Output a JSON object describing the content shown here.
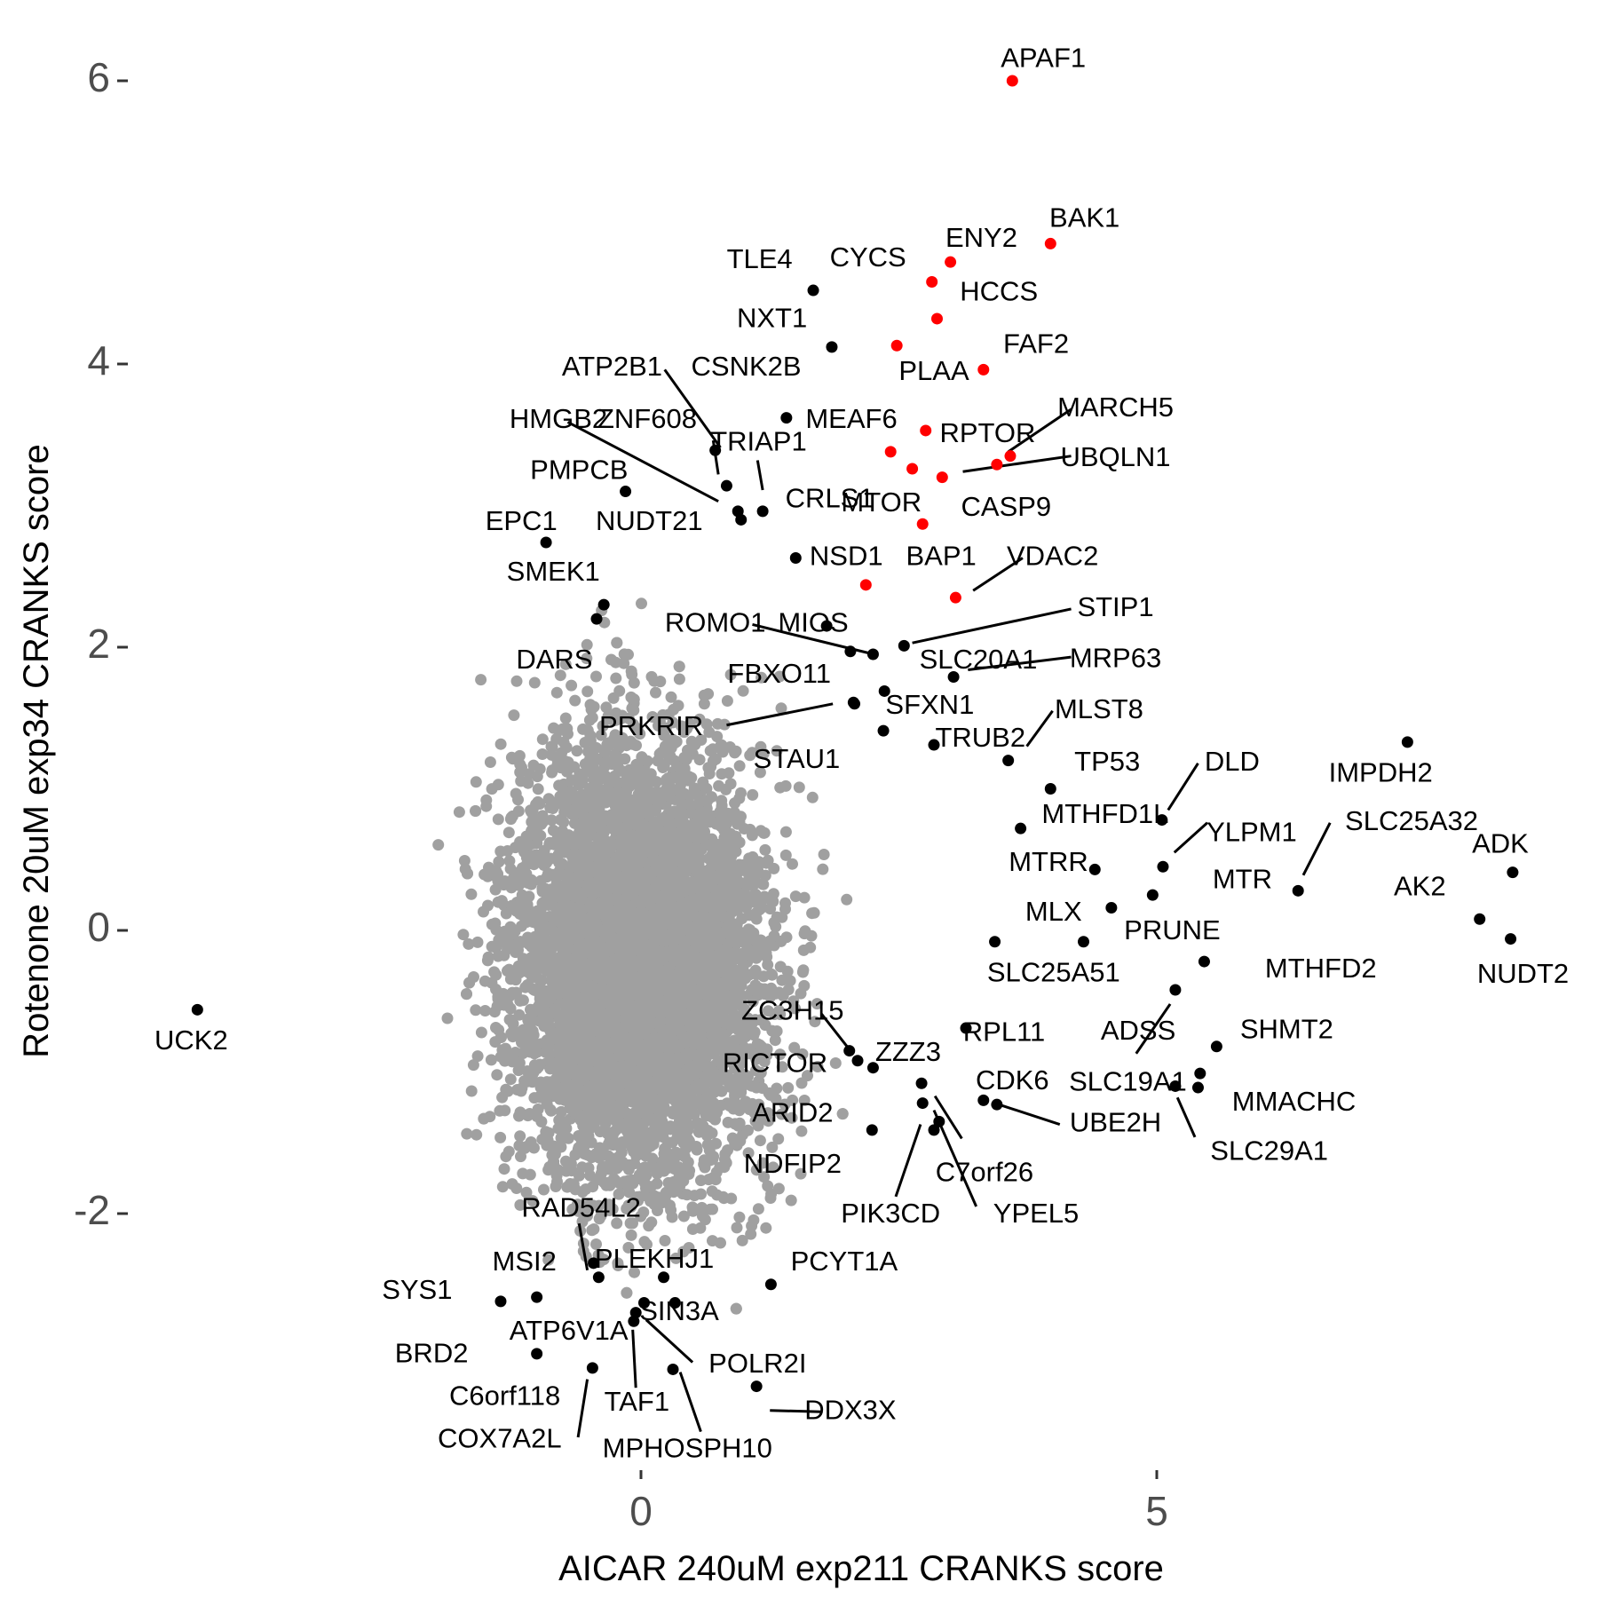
{
  "chart_data": {
    "type": "scatter",
    "title": "",
    "xlabel": "AICAR 240uM exp211 CRANKS score",
    "ylabel": "Rotenone 20uM exp34 CRANKS score",
    "xlim": [
      -4.4,
      9.2
    ],
    "ylim": [
      -3.7,
      6.3
    ],
    "x_ticks": [
      0,
      5
    ],
    "y_ticks": [
      -2,
      0,
      2,
      4,
      6
    ],
    "grid": false,
    "colors": {
      "background_points": "#a0a0a0",
      "hit": "#000000",
      "highlight": "#ff0000",
      "tick_label": "#4d4d4d"
    },
    "background_cloud": {
      "description_color": "#a0a0a0",
      "center": [
        0.0,
        -0.2
      ],
      "approx_count": 6000
    },
    "points": [
      {
        "label": "APAF1",
        "x": 3.6,
        "y": 6.0,
        "color": "red",
        "lx": 3.9,
        "ly": 6.15
      },
      {
        "label": "BAK1",
        "x": 3.97,
        "y": 4.85,
        "color": "red",
        "lx": 4.3,
        "ly": 5.02
      },
      {
        "label": "ENY2",
        "x": 3.0,
        "y": 4.72,
        "color": "red",
        "lx": 3.3,
        "ly": 4.88
      },
      {
        "label": "CYCS",
        "x": 2.82,
        "y": 4.58,
        "color": "red",
        "lx": 2.2,
        "ly": 4.74
      },
      {
        "label": "HCCS",
        "x": 2.87,
        "y": 4.32,
        "color": "red",
        "lx": 3.47,
        "ly": 4.5
      },
      {
        "label": "TLE4",
        "x": 1.67,
        "y": 4.52,
        "color": "black",
        "lx": 1.15,
        "ly": 4.73
      },
      {
        "label": "NXT1",
        "x": 1.85,
        "y": 4.12,
        "color": "black",
        "lx": 1.27,
        "ly": 4.31
      },
      {
        "label": "PLAA",
        "x": 2.48,
        "y": 4.13,
        "color": "red",
        "lx": 2.84,
        "ly": 3.94
      },
      {
        "label": "FAF2",
        "x": 3.32,
        "y": 3.96,
        "color": "red",
        "lx": 3.83,
        "ly": 4.13
      },
      {
        "label": "CSNK2B",
        "x": 1.41,
        "y": 3.62,
        "color": "black",
        "lx": 1.02,
        "ly": 3.97
      },
      {
        "label": "MEAF6",
        "x": 2.76,
        "y": 3.53,
        "color": "red",
        "lx": 2.04,
        "ly": 3.6
      },
      {
        "label": "RPTOR",
        "x": 3.45,
        "y": 3.29,
        "color": "red",
        "lx": 3.36,
        "ly": 3.5
      },
      {
        "label": "MARCH5",
        "x": 3.58,
        "y": 3.35,
        "color": "red",
        "lx": 4.6,
        "ly": 3.68
      },
      {
        "label": "UBQLN1",
        "x": 2.92,
        "y": 3.2,
        "color": "red",
        "lx": 4.6,
        "ly": 3.33
      },
      {
        "label": "TRIAP1",
        "x": 2.42,
        "y": 3.38,
        "color": "red",
        "lx": 1.14,
        "ly": 3.44
      },
      {
        "label": "CASP9",
        "x": 2.63,
        "y": 3.26,
        "color": "red",
        "lx": 3.54,
        "ly": 2.98
      },
      {
        "label": "MTOR",
        "x": 2.73,
        "y": 2.87,
        "color": "red",
        "lx": 2.33,
        "ly": 3.01
      },
      {
        "label": "CRLS1",
        "x": 1.18,
        "y": 2.96,
        "color": "black",
        "lx": 1.83,
        "ly": 3.04
      },
      {
        "label": "ZNF608",
        "x": 0.72,
        "y": 3.39,
        "color": "black",
        "lx": 0.06,
        "ly": 3.6
      },
      {
        "label": "ATP2B1",
        "x": 0.83,
        "y": 3.14,
        "color": "black",
        "lx": -0.28,
        "ly": 3.97
      },
      {
        "label": "HMGB2",
        "x": 0.94,
        "y": 2.96,
        "color": "black",
        "lx": -0.8,
        "ly": 3.6
      },
      {
        "label": "PMPCB",
        "x": -0.15,
        "y": 3.1,
        "color": "black",
        "lx": -0.6,
        "ly": 3.24
      },
      {
        "label": "EPC1",
        "x": -0.92,
        "y": 2.74,
        "color": "black",
        "lx": -1.16,
        "ly": 2.88
      },
      {
        "label": "NUDT21",
        "x": 0.97,
        "y": 2.9,
        "color": "black",
        "lx": 0.08,
        "ly": 2.88
      },
      {
        "label": "NSD1",
        "x": 1.5,
        "y": 2.63,
        "color": "black",
        "lx": 1.99,
        "ly": 2.63
      },
      {
        "label": "SMEK1",
        "x": -0.36,
        "y": 2.3,
        "color": "black",
        "lx": -0.85,
        "ly": 2.52
      },
      {
        "label": "BAP1",
        "x": 2.18,
        "y": 2.44,
        "color": "red",
        "lx": 2.91,
        "ly": 2.63
      },
      {
        "label": "VDAC2",
        "x": 3.05,
        "y": 2.35,
        "color": "red",
        "lx": 3.99,
        "ly": 2.63
      },
      {
        "label": "STIP1",
        "x": 2.55,
        "y": 2.01,
        "color": "black",
        "lx": 4.6,
        "ly": 2.27
      },
      {
        "label": "MIOS",
        "x": 1.8,
        "y": 2.15,
        "color": "black",
        "lx": 1.67,
        "ly": 2.16
      },
      {
        "label": "ROMO1",
        "x": 2.03,
        "y": 1.97,
        "color": "black",
        "lx": 0.72,
        "ly": 2.16
      },
      {
        "label": "DARS",
        "x": -0.43,
        "y": 2.2,
        "color": "black",
        "lx": -0.84,
        "ly": 1.9
      },
      {
        "label": "SLC20A1",
        "x": 2.25,
        "y": 1.95,
        "color": "black",
        "lx": 3.27,
        "ly": 1.9
      },
      {
        "label": "MRP63",
        "x": 3.03,
        "y": 1.79,
        "color": "black",
        "lx": 4.6,
        "ly": 1.91
      },
      {
        "label": "FBXO11",
        "x": 2.36,
        "y": 1.69,
        "color": "black",
        "lx": 1.34,
        "ly": 1.8
      },
      {
        "label": "SFXN1",
        "x": 2.06,
        "y": 1.61,
        "color": "black",
        "lx": 2.8,
        "ly": 1.58
      },
      {
        "label": "PRKRIR",
        "x": 2.07,
        "y": 1.6,
        "color": "black",
        "lx": 0.1,
        "ly": 1.43
      },
      {
        "label": "MLST8",
        "x": 3.56,
        "y": 1.2,
        "color": "black",
        "lx": 4.44,
        "ly": 1.55
      },
      {
        "label": "TRUB2",
        "x": 2.84,
        "y": 1.31,
        "color": "black",
        "lx": 3.29,
        "ly": 1.35
      },
      {
        "label": "STAU1",
        "x": 2.35,
        "y": 1.41,
        "color": "black",
        "lx": 1.51,
        "ly": 1.2
      },
      {
        "label": "TP53",
        "x": 3.97,
        "y": 1.0,
        "color": "black",
        "lx": 4.52,
        "ly": 1.18
      },
      {
        "label": "DLD",
        "x": 5.05,
        "y": 0.78,
        "color": "black",
        "lx": 5.73,
        "ly": 1.18
      },
      {
        "label": "IMPDH2",
        "x": 7.43,
        "y": 1.33,
        "color": "black",
        "lx": 7.17,
        "ly": 1.1
      },
      {
        "label": "MTHFD1L",
        "x": 3.68,
        "y": 0.72,
        "color": "black",
        "lx": 4.5,
        "ly": 0.81
      },
      {
        "label": "YLPM1",
        "x": 5.06,
        "y": 0.45,
        "color": "black",
        "lx": 5.92,
        "ly": 0.68
      },
      {
        "label": "SLC25A32",
        "x": 6.37,
        "y": 0.28,
        "color": "black",
        "lx": 7.47,
        "ly": 0.76
      },
      {
        "label": "ADK",
        "x": 8.45,
        "y": 0.41,
        "color": "black",
        "lx": 8.33,
        "ly": 0.6
      },
      {
        "label": "MTRR",
        "x": 4.4,
        "y": 0.43,
        "color": "black",
        "lx": 3.95,
        "ly": 0.47
      },
      {
        "label": "MTR",
        "x": 4.96,
        "y": 0.25,
        "color": "black",
        "lx": 5.83,
        "ly": 0.35
      },
      {
        "label": "AK2",
        "x": 8.13,
        "y": 0.08,
        "color": "black",
        "lx": 7.55,
        "ly": 0.3
      },
      {
        "label": "MLX",
        "x": 4.56,
        "y": 0.16,
        "color": "black",
        "lx": 4.0,
        "ly": 0.12
      },
      {
        "label": "PRUNE",
        "x": 4.29,
        "y": -0.08,
        "color": "black",
        "lx": 5.15,
        "ly": -0.01
      },
      {
        "label": "NUDT2",
        "x": 8.43,
        "y": -0.06,
        "color": "black",
        "lx": 8.55,
        "ly": -0.32
      },
      {
        "label": "MTHFD2",
        "x": 5.46,
        "y": -0.22,
        "color": "black",
        "lx": 6.59,
        "ly": -0.28
      },
      {
        "label": "SLC25A51",
        "x": 3.43,
        "y": -0.08,
        "color": "black",
        "lx": 4.0,
        "ly": -0.31
      },
      {
        "label": "ZC3H15",
        "x": 2.02,
        "y": -0.85,
        "color": "black",
        "lx": 1.47,
        "ly": -0.58
      },
      {
        "label": "ADSS",
        "x": 5.18,
        "y": -0.42,
        "color": "black",
        "lx": 4.82,
        "ly": -0.72
      },
      {
        "label": "SHMT2",
        "x": 5.58,
        "y": -0.82,
        "color": "black",
        "lx": 6.26,
        "ly": -0.71
      },
      {
        "label": "RPL11",
        "x": 3.15,
        "y": -0.69,
        "color": "black",
        "lx": 3.52,
        "ly": -0.73
      },
      {
        "label": "ZZZ3",
        "x": 2.25,
        "y": -0.97,
        "color": "black",
        "lx": 2.59,
        "ly": -0.87
      },
      {
        "label": "RICTOR",
        "x": 2.1,
        "y": -0.92,
        "color": "black",
        "lx": 1.3,
        "ly": -0.95
      },
      {
        "label": "SLC19A1",
        "x": 5.4,
        "y": -1.11,
        "color": "black",
        "lx": 4.72,
        "ly": -1.08
      },
      {
        "label": "CDK6",
        "x": 3.32,
        "y": -1.2,
        "color": "black",
        "lx": 3.6,
        "ly": -1.07
      },
      {
        "label": "MMACHC",
        "x": 5.42,
        "y": -1.01,
        "color": "black",
        "lx": 6.33,
        "ly": -1.22
      },
      {
        "label": "ARID2",
        "x": 2.72,
        "y": -1.08,
        "color": "black",
        "lx": 1.47,
        "ly": -1.3
      },
      {
        "label": "UBE2H",
        "x": 3.45,
        "y": -1.23,
        "color": "black",
        "lx": 4.6,
        "ly": -1.37
      },
      {
        "label": "SLC29A1",
        "x": 5.18,
        "y": -1.1,
        "color": "black",
        "lx": 6.09,
        "ly": -1.57
      },
      {
        "label": "NDFIP2",
        "x": 2.24,
        "y": -1.41,
        "color": "black",
        "lx": 1.47,
        "ly": -1.66
      },
      {
        "label": "C7orf26",
        "x": 2.84,
        "y": -1.41,
        "color": "black",
        "lx": 3.33,
        "ly": -1.72
      },
      {
        "label": "PIK3CD",
        "x": 2.73,
        "y": -1.22,
        "color": "black",
        "lx": 2.42,
        "ly": -2.01
      },
      {
        "label": "YPEL5",
        "x": 2.89,
        "y": -1.35,
        "color": "black",
        "lx": 3.83,
        "ly": -2.01
      },
      {
        "label": "RAD54L2",
        "x": -0.46,
        "y": -2.35,
        "color": "black",
        "lx": -0.58,
        "ly": -1.97
      },
      {
        "label": "PLEKHJ1",
        "x": 0.22,
        "y": -2.45,
        "color": "black",
        "lx": 0.13,
        "ly": -2.33
      },
      {
        "label": "MSI2",
        "x": -0.41,
        "y": -2.45,
        "color": "black",
        "lx": -1.13,
        "ly": -2.35
      },
      {
        "label": "PCYT1A",
        "x": 1.26,
        "y": -2.5,
        "color": "black",
        "lx": 1.97,
        "ly": -2.35
      },
      {
        "label": "SYS1",
        "x": -1.36,
        "y": -2.62,
        "color": "black",
        "lx": -2.17,
        "ly": -2.55
      },
      {
        "label": "SIN3A",
        "x": 0.03,
        "y": -2.63,
        "color": "black",
        "lx": 0.37,
        "ly": -2.7
      },
      {
        "label": "ATP6V1A",
        "x": -0.05,
        "y": -2.7,
        "color": "black",
        "lx": -0.7,
        "ly": -2.84
      },
      {
        "label": "BRD2",
        "x": -1.01,
        "y": -2.59,
        "color": "black",
        "lx": -2.03,
        "ly": -3.0
      },
      {
        "label": "POLR2I",
        "x": 0.31,
        "y": -3.1,
        "color": "black",
        "lx": 1.13,
        "ly": -3.07
      },
      {
        "label": "C6orf118",
        "x": -0.47,
        "y": -3.09,
        "color": "black",
        "lx": -1.32,
        "ly": -3.3
      },
      {
        "label": "TAF1",
        "x": -0.07,
        "y": -2.76,
        "color": "black",
        "lx": -0.04,
        "ly": -3.34
      },
      {
        "label": "DDX3X",
        "x": 1.12,
        "y": -3.22,
        "color": "black",
        "lx": 2.03,
        "ly": -3.4
      },
      {
        "label": "COX7A2L",
        "x": -1.01,
        "y": -2.99,
        "color": "black",
        "lx": -1.37,
        "ly": -3.6
      },
      {
        "label": "MPHOSPH10",
        "x": 0.33,
        "y": -2.63,
        "color": "black",
        "lx": 0.45,
        "ly": -3.67
      },
      {
        "label": "UCK2",
        "x": -4.3,
        "y": -0.56,
        "color": "black",
        "lx": -4.36,
        "ly": -0.79
      }
    ],
    "leader_lines": [
      {
        "label": "ATP2B1",
        "from": [
          0.23,
          3.96
        ],
        "to": [
          0.77,
          3.41
        ]
      },
      {
        "label": "ZNF608",
        "from": [
          0.7,
          3.46
        ],
        "to": [
          0.75,
          3.22
        ]
      },
      {
        "label": "HMGB2",
        "from": [
          -0.71,
          3.59
        ],
        "to": [
          0.75,
          3.03
        ]
      },
      {
        "label": "TRIAP1",
        "from": [
          1.13,
          3.32
        ],
        "to": [
          1.18,
          3.11
        ]
      },
      {
        "label": "MARCH5",
        "from": [
          4.17,
          3.68
        ],
        "to": [
          3.56,
          3.38
        ]
      },
      {
        "label": "UBQLN1",
        "from": [
          4.17,
          3.35
        ],
        "to": [
          3.12,
          3.24
        ]
      },
      {
        "label": "VDAC2",
        "from": [
          3.7,
          2.63
        ],
        "to": [
          3.22,
          2.4
        ]
      },
      {
        "label": "STIP1",
        "from": [
          4.17,
          2.27
        ],
        "to": [
          2.63,
          2.03
        ]
      },
      {
        "label": "ROMO1",
        "from": [
          1.08,
          2.16
        ],
        "to": [
          2.2,
          1.96
        ]
      },
      {
        "label": "MRP63",
        "from": [
          4.17,
          1.93
        ],
        "to": [
          3.17,
          1.84
        ]
      },
      {
        "label": "PRKRIR",
        "from": [
          0.83,
          1.45
        ],
        "to": [
          1.86,
          1.6
        ]
      },
      {
        "label": "MLST8",
        "from": [
          3.99,
          1.55
        ],
        "to": [
          3.74,
          1.3
        ]
      },
      {
        "label": "DLD",
        "from": [
          5.4,
          1.18
        ],
        "to": [
          5.11,
          0.85
        ]
      },
      {
        "label": "YLPM1",
        "from": [
          5.49,
          0.76
        ],
        "to": [
          5.17,
          0.55
        ]
      },
      {
        "label": "SLC25A32",
        "from": [
          6.68,
          0.76
        ],
        "to": [
          6.42,
          0.39
        ]
      },
      {
        "label": "ZC3H15",
        "from": [
          1.75,
          -0.59
        ],
        "to": [
          2.03,
          -0.85
        ]
      },
      {
        "label": "SLC19A1",
        "from": [
          4.8,
          -0.87
        ],
        "to": [
          5.13,
          -0.52
        ]
      },
      {
        "label": "UBE2H",
        "from": [
          4.06,
          -1.37
        ],
        "to": [
          3.47,
          -1.23
        ]
      },
      {
        "label": "SLC29A1",
        "from": [
          5.37,
          -1.46
        ],
        "to": [
          5.2,
          -1.18
        ]
      },
      {
        "label": "C7orf26",
        "from": [
          3.11,
          -1.47
        ],
        "to": [
          2.85,
          -1.17
        ]
      },
      {
        "label": "PIK3CD",
        "from": [
          2.47,
          -1.88
        ],
        "to": [
          2.71,
          -1.37
        ]
      },
      {
        "label": "YPEL5",
        "from": [
          3.25,
          -1.95
        ],
        "to": [
          2.84,
          -1.27
        ]
      },
      {
        "label": "RAD54L2",
        "from": [
          -0.6,
          -2.07
        ],
        "to": [
          -0.52,
          -2.4
        ]
      },
      {
        "label": "POLR2I",
        "from": [
          0.5,
          -3.05
        ],
        "to": [
          0.05,
          -2.75
        ]
      },
      {
        "label": "TAF1",
        "from": [
          -0.05,
          -3.23
        ],
        "to": [
          -0.08,
          -2.82
        ]
      },
      {
        "label": "DDX3X",
        "from": [
          1.75,
          -3.4
        ],
        "to": [
          1.25,
          -3.39
        ]
      },
      {
        "label": "COX7A2L",
        "from": [
          -0.61,
          -3.58
        ],
        "to": [
          -0.52,
          -3.17
        ]
      },
      {
        "label": "MPHOSPH10",
        "from": [
          0.58,
          -3.54
        ],
        "to": [
          0.38,
          -3.12
        ]
      }
    ]
  }
}
